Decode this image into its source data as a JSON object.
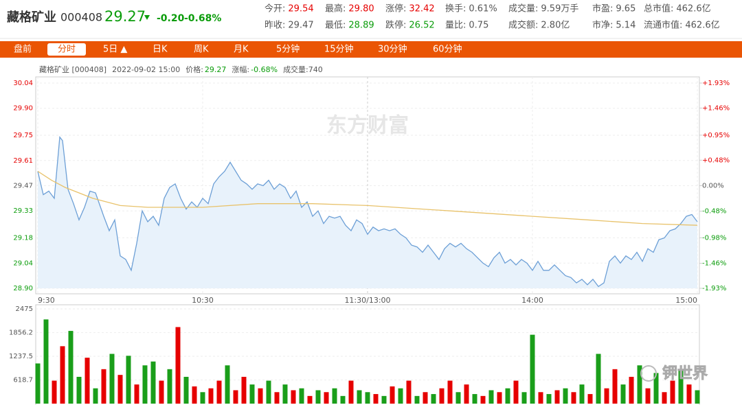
{
  "header": {
    "name": "藏格矿业",
    "code": "000408",
    "price": "29.27",
    "change": "-0.20",
    "change_pct": "-0.68%",
    "color": "#0a9c0a"
  },
  "info": [
    [
      {
        "label": "今开:",
        "value": "29.54",
        "color": "#e60000"
      },
      {
        "label": "最高:",
        "value": "29.80",
        "color": "#e60000"
      },
      {
        "label": "涨停:",
        "value": "32.42",
        "color": "#e60000"
      },
      {
        "label": "换手:",
        "value": "0.61%",
        "color": "#555"
      },
      {
        "label": "成交量:",
        "value": "9.59万手",
        "color": "#555"
      },
      {
        "label": "市盈:",
        "value": "9.65",
        "color": "#555"
      },
      {
        "label": "总市值:",
        "value": "462.6亿",
        "color": "#555"
      }
    ],
    [
      {
        "label": "昨收:",
        "value": "29.47",
        "color": "#555"
      },
      {
        "label": "最低:",
        "value": "28.89",
        "color": "#0a9c0a"
      },
      {
        "label": "跌停:",
        "value": "26.52",
        "color": "#0a9c0a"
      },
      {
        "label": "量比:",
        "value": "0.75",
        "color": "#555"
      },
      {
        "label": "成交额:",
        "value": "2.80亿",
        "color": "#555"
      },
      {
        "label": "市净:",
        "value": "5.14",
        "color": "#555"
      },
      {
        "label": "流通市值:",
        "value": "462.6亿",
        "color": "#555"
      }
    ]
  ],
  "tabs": {
    "items": [
      "盘前",
      "分时",
      "5日 ▲",
      "日K",
      "周K",
      "月K",
      "5分钟",
      "15分钟",
      "30分钟",
      "60分钟"
    ],
    "selected": 1
  },
  "chart_info": [
    {
      "text": "藏格矿业 [000408]",
      "color": "#555"
    },
    {
      "text": "2022-09-02 15:00",
      "color": "#555"
    },
    {
      "text": "价格:",
      "color": "#555"
    },
    {
      "text": "29.27",
      "color": "#0a9c0a"
    },
    {
      "text": "涨幅:",
      "color": "#555"
    },
    {
      "text": "-0.68%",
      "color": "#0a9c0a"
    },
    {
      "text": "成交量:740",
      "color": "#555"
    }
  ],
  "chart_data": [
    {
      "type": "line",
      "watermark": "东方财富",
      "xlim": [
        0,
        240
      ],
      "xticks": [
        {
          "value": 0,
          "label": "9:30"
        },
        {
          "value": 60,
          "label": "10:30"
        },
        {
          "value": 120,
          "label": "11:30/13:00"
        },
        {
          "value": 180,
          "label": "14:00"
        },
        {
          "value": 240,
          "label": "15:00"
        }
      ],
      "ylim": [
        28.9,
        30.04
      ],
      "yticks": [
        30.04,
        {
          "value": 29.9,
          "label": "29.90"
        },
        29.75,
        29.61,
        29.47,
        29.33,
        29.18,
        29.04,
        {
          "value": 28.9,
          "label": "28.90"
        }
      ],
      "y2lim": [
        -1.93,
        1.93
      ],
      "y2ticks": [
        {
          "value": 1.93,
          "label": "+1.93%"
        },
        {
          "value": 1.46,
          "label": "+1.46%"
        },
        {
          "value": 0.95,
          "label": "+0.95%"
        },
        {
          "value": 0.48,
          "label": "+0.48%"
        },
        {
          "value": 0,
          "label": "0.00%"
        },
        {
          "value": -0.48,
          "label": "-0.48%"
        },
        {
          "value": -0.98,
          "label": "-0.98%"
        },
        {
          "value": -1.46,
          "label": "-1.46%"
        },
        {
          "value": -1.93,
          "label": "-1.93%"
        }
      ],
      "up_color": "#e60000",
      "down_color": "#0a9c0a",
      "flat_color": "#555",
      "grid": true,
      "series": [
        {
          "color": "#6c9fd6",
          "fill": "#e8f2fb",
          "x": [
            0,
            2,
            4,
            6,
            8,
            9,
            11,
            13,
            15,
            17,
            19,
            21,
            24,
            26,
            28,
            30,
            32,
            34,
            36,
            38,
            40,
            42,
            44,
            46,
            48,
            50,
            52,
            54,
            56,
            58,
            60,
            62,
            64,
            66,
            68,
            70,
            72,
            74,
            76,
            78,
            80,
            82,
            84,
            86,
            88,
            90,
            92,
            94,
            96,
            98,
            100,
            102,
            104,
            106,
            108,
            110,
            112,
            114,
            116,
            118,
            120,
            122,
            124,
            126,
            128,
            130,
            132,
            134,
            136,
            138,
            140,
            142,
            144,
            146,
            148,
            150,
            152,
            154,
            156,
            158,
            160,
            162,
            164,
            166,
            168,
            170,
            172,
            174,
            176,
            178,
            180,
            182,
            184,
            186,
            188,
            190,
            192,
            194,
            196,
            198,
            200,
            202,
            204,
            206,
            208,
            210,
            212,
            214,
            216,
            218,
            220,
            222,
            224,
            226,
            228,
            230,
            232,
            234,
            236,
            238,
            240
          ],
          "values": [
            29.55,
            29.42,
            29.44,
            29.4,
            29.74,
            29.72,
            29.45,
            29.37,
            29.28,
            29.35,
            29.44,
            29.43,
            29.3,
            29.22,
            29.28,
            29.08,
            29.06,
            29.0,
            29.15,
            29.33,
            29.27,
            29.3,
            29.25,
            29.4,
            29.46,
            29.48,
            29.4,
            29.34,
            29.38,
            29.35,
            29.4,
            29.37,
            29.48,
            29.52,
            29.55,
            29.6,
            29.55,
            29.5,
            29.48,
            29.45,
            29.48,
            29.47,
            29.5,
            29.45,
            29.48,
            29.46,
            29.4,
            29.44,
            29.35,
            29.38,
            29.3,
            29.33,
            29.26,
            29.3,
            29.29,
            29.3,
            29.25,
            29.22,
            29.28,
            29.26,
            29.2,
            29.24,
            29.22,
            29.23,
            29.22,
            29.23,
            29.2,
            29.18,
            29.14,
            29.13,
            29.1,
            29.14,
            29.1,
            29.06,
            29.12,
            29.15,
            29.13,
            29.15,
            29.12,
            29.1,
            29.07,
            29.04,
            29.02,
            29.07,
            29.1,
            29.04,
            29.06,
            29.03,
            29.06,
            29.04,
            29.0,
            29.05,
            29.0,
            29.0,
            29.03,
            29.0,
            28.97,
            28.96,
            28.93,
            28.95,
            28.92,
            28.95,
            28.91,
            28.93,
            29.05,
            29.08,
            29.04,
            29.08,
            29.06,
            29.1,
            29.05,
            29.12,
            29.1,
            29.17,
            29.18,
            29.22,
            29.23,
            29.26,
            29.3,
            29.31,
            29.27
          ]
        },
        {
          "color": "#e8c26a",
          "x": [
            0,
            5,
            10,
            15,
            20,
            25,
            30,
            40,
            60,
            80,
            100,
            120,
            150,
            180,
            200,
            220,
            240
          ],
          "values": [
            29.55,
            29.5,
            29.46,
            29.43,
            29.4,
            29.38,
            29.36,
            29.35,
            29.35,
            29.37,
            29.37,
            29.36,
            29.33,
            29.3,
            29.28,
            29.26,
            29.25
          ]
        }
      ]
    },
    {
      "type": "bar",
      "watermark": "钾世界",
      "xlim": [
        0,
        240
      ],
      "ylim": [
        0,
        2475
      ],
      "yticks": [
        2475,
        1856.2,
        1237.5,
        618.7
      ],
      "grid": true,
      "up_color": "#e60000",
      "down_color": "#1a9e1a",
      "x": [
        0,
        3,
        6,
        9,
        12,
        15,
        18,
        21,
        24,
        27,
        30,
        33,
        36,
        39,
        42,
        45,
        48,
        51,
        54,
        57,
        60,
        63,
        66,
        69,
        72,
        75,
        78,
        81,
        84,
        87,
        90,
        93,
        96,
        99,
        102,
        105,
        108,
        111,
        114,
        117,
        120,
        123,
        126,
        129,
        132,
        135,
        138,
        141,
        144,
        147,
        150,
        153,
        156,
        159,
        162,
        165,
        168,
        171,
        174,
        177,
        180,
        183,
        186,
        189,
        192,
        195,
        198,
        201,
        204,
        207,
        210,
        213,
        216,
        219,
        222,
        225,
        228,
        231,
        234,
        237,
        240
      ],
      "values": [
        1050,
        2200,
        600,
        1500,
        1900,
        700,
        1200,
        400,
        900,
        1300,
        750,
        1250,
        500,
        1000,
        1100,
        600,
        900,
        2000,
        700,
        450,
        300,
        400,
        600,
        1000,
        350,
        700,
        500,
        400,
        600,
        300,
        500,
        350,
        400,
        200,
        350,
        300,
        400,
        200,
        600,
        350,
        300,
        250,
        200,
        450,
        400,
        600,
        200,
        300,
        250,
        400,
        600,
        300,
        500,
        250,
        200,
        350,
        300,
        400,
        600,
        300,
        1800,
        300,
        250,
        350,
        400,
        300,
        500,
        250,
        1300,
        400,
        900,
        500,
        700,
        1000,
        400,
        800,
        300,
        600,
        900,
        500,
        350
      ],
      "up": [
        false,
        false,
        true,
        true,
        false,
        false,
        true,
        false,
        true,
        false,
        true,
        false,
        true,
        false,
        false,
        true,
        false,
        true,
        false,
        true,
        false,
        true,
        true,
        false,
        true,
        true,
        false,
        true,
        false,
        true,
        false,
        true,
        false,
        true,
        false,
        true,
        false,
        false,
        true,
        false,
        false,
        true,
        false,
        true,
        false,
        true,
        false,
        true,
        false,
        true,
        true,
        false,
        true,
        false,
        true,
        false,
        true,
        false,
        true,
        false,
        false,
        true,
        false,
        true,
        false,
        true,
        false,
        true,
        false,
        true,
        true,
        false,
        true,
        false,
        true,
        false,
        true,
        true,
        false,
        true,
        false
      ]
    }
  ]
}
